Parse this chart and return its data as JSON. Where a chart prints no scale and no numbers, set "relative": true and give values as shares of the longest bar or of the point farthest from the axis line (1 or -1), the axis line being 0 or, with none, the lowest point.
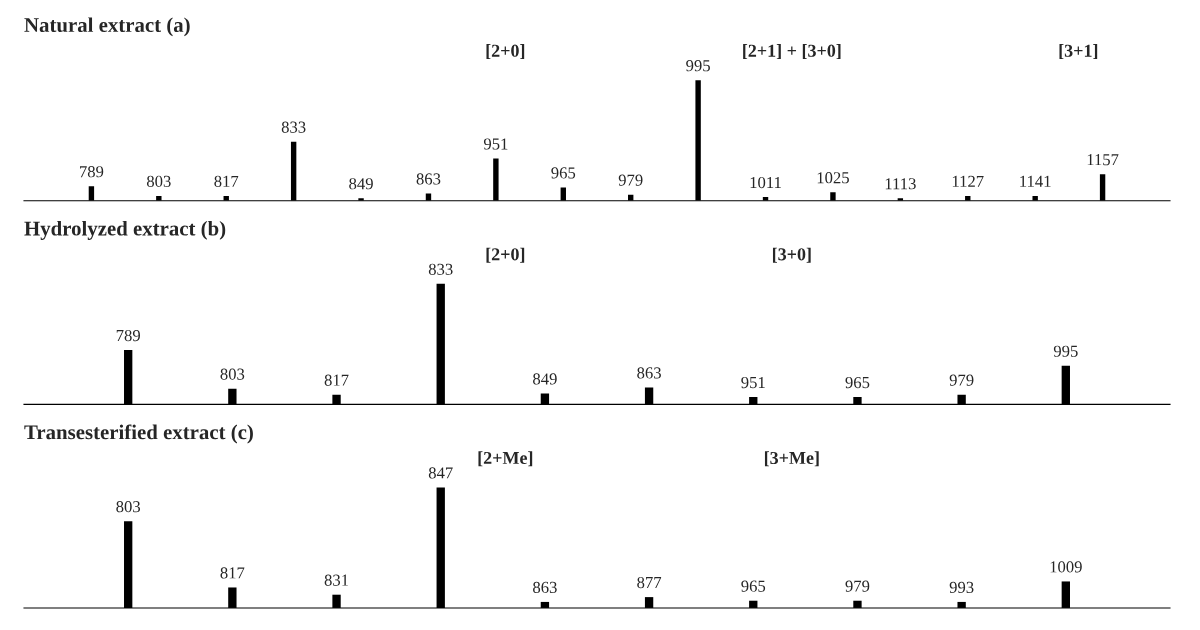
{
  "chart_data": [
    {
      "type": "bar",
      "title": "Natural extract (a)",
      "relative": true,
      "color": "#000000",
      "categories": [
        null,
        null,
        null,
        null,
        null,
        null,
        null,
        null,
        null,
        null,
        null,
        null,
        null,
        null,
        null,
        null
      ],
      "values": [
        0.12,
        0.04,
        0.04,
        0.49,
        0.02,
        0.06,
        0.35,
        0.11,
        0.05,
        1,
        0.03,
        0.07,
        0.02,
        0.04,
        0.04,
        0.22
      ],
      "annotations": [
        "[2+0]",
        "[2+1] + [3+0]",
        "[3+1]",
        {
          "text": "789",
          "y": 0.12
        },
        {
          "text": "803",
          "y": 0.04
        },
        {
          "text": "817",
          "y": 0.04
        },
        {
          "text": "833",
          "y": 0.49
        },
        {
          "text": "849",
          "y": 0.02
        },
        {
          "text": "863",
          "y": 0.06
        },
        {
          "text": "951",
          "y": 0.35
        },
        {
          "text": "965",
          "y": 0.11
        },
        {
          "text": "979",
          "y": 0.05
        },
        {
          "text": "995",
          "y": 1
        },
        {
          "text": "1011",
          "y": 0.03
        },
        {
          "text": "1025",
          "y": 0.07
        },
        {
          "text": "1113",
          "y": 0.02
        },
        {
          "text": "1127",
          "y": 0.04
        },
        {
          "text": "1141",
          "y": 0.04
        },
        {
          "text": "1157",
          "y": 0.22
        }
      ]
    },
    {
      "type": "bar",
      "title": "Hydrolyzed extract (b)",
      "relative": true,
      "color": "#000000",
      "categories": [
        null,
        null,
        null,
        null,
        null,
        null,
        null,
        null,
        null,
        null
      ],
      "values": [
        0.45,
        0.13,
        0.08,
        1,
        0.09,
        0.14,
        0.06,
        0.06,
        0.08,
        0.32
      ],
      "annotations": [
        "[2+0]",
        "[3+0]",
        {
          "text": "789",
          "y": 0.45
        },
        {
          "text": "803",
          "y": 0.13
        },
        {
          "text": "817",
          "y": 0.08
        },
        {
          "text": "833",
          "y": 1
        },
        {
          "text": "849",
          "y": 0.09
        },
        {
          "text": "863",
          "y": 0.14
        },
        {
          "text": "951",
          "y": 0.06
        },
        {
          "text": "965",
          "y": 0.06
        },
        {
          "text": "979",
          "y": 0.08
        },
        {
          "text": "995",
          "y": 0.32
        }
      ]
    },
    {
      "type": "bar",
      "title": "Transesterified extract (c)",
      "relative": true,
      "color": "#000000",
      "categories": [
        null,
        null,
        null,
        null,
        null,
        null,
        null,
        null,
        null,
        null
      ],
      "values": [
        0.72,
        0.17,
        0.11,
        1,
        0.05,
        0.09,
        0.06,
        0.06,
        0.05,
        0.22
      ],
      "annotations": [
        "[2+Me]",
        "[3+Me]",
        {
          "text": "803",
          "y": 0.72
        },
        {
          "text": "817",
          "y": 0.17
        },
        {
          "text": "831",
          "y": 0.11
        },
        {
          "text": "847",
          "y": 1
        },
        {
          "text": "863",
          "y": 0.05
        },
        {
          "text": "877",
          "y": 0.09
        },
        {
          "text": "965",
          "y": 0.06
        },
        {
          "text": "979",
          "y": 0.06
        },
        {
          "text": "993",
          "y": 0.05
        },
        {
          "text": "1009",
          "y": 0.22
        }
      ]
    }
  ]
}
